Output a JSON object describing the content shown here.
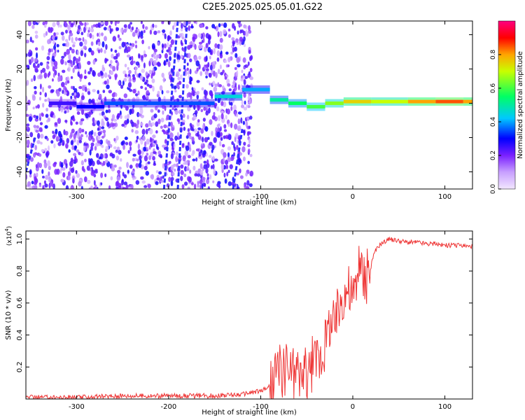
{
  "figure": {
    "title": "C2E5.2025.025.05.01.G22"
  },
  "chart_data": [
    {
      "type": "heatmap",
      "xlabel": "Height of straight line (km)",
      "ylabel": "Frequency (Hz)",
      "xlim": [
        -355,
        130
      ],
      "ylim": [
        -50,
        48
      ],
      "xticks": [
        -300,
        -200,
        -100,
        0,
        100
      ],
      "yticks": [
        -40,
        -20,
        0,
        20,
        40
      ],
      "colorbar": {
        "label": "Normalized spectral amplitude",
        "range": [
          0.0,
          1.0
        ],
        "ticks": [
          0.0,
          0.2,
          0.4,
          0.6,
          0.8
        ],
        "colors": [
          "#e8c8ff",
          "#8a2be2",
          "#0000ff",
          "#00c8ff",
          "#00ff64",
          "#c8ff00",
          "#ffa500",
          "#ff0000",
          "#ff0080"
        ]
      },
      "bands": [
        {
          "x": -330,
          "freq": 0,
          "amplitude": 0.25
        },
        {
          "x": -300,
          "freq": -2,
          "amplitude": 0.3
        },
        {
          "x": -270,
          "freq": 0,
          "amplitude": 0.35
        },
        {
          "x": -150,
          "freq": 4,
          "amplitude": 0.45
        },
        {
          "x": -120,
          "freq": 8,
          "amplitude": 0.4
        },
        {
          "x": -90,
          "freq": 2,
          "amplitude": 0.5
        },
        {
          "x": -70,
          "freq": 0,
          "amplitude": 0.55
        },
        {
          "x": -50,
          "freq": -2,
          "amplitude": 0.6
        },
        {
          "x": -30,
          "freq": 0,
          "amplitude": 0.65
        },
        {
          "x": -10,
          "freq": 1,
          "amplitude": 0.75
        },
        {
          "x": 20,
          "freq": 1,
          "amplitude": 0.7
        },
        {
          "x": 60,
          "freq": 1,
          "amplitude": 0.8
        },
        {
          "x": 90,
          "freq": 1,
          "amplitude": 0.85
        },
        {
          "x": 120,
          "freq": 1,
          "amplitude": 0.8
        }
      ]
    },
    {
      "type": "line",
      "xlabel": "Height of straight line (km)",
      "ylabel": "SNR (10 * v/v)",
      "multiplier_label": "(x10",
      "multiplier_exp": "4",
      "xlim": [
        -355,
        130
      ],
      "ylim": [
        0.0,
        1.05
      ],
      "xticks": [
        -300,
        -200,
        -100,
        0,
        100
      ],
      "yticks": [
        0.2,
        0.4,
        0.6,
        0.8,
        1.0
      ],
      "series": [
        {
          "color": "#ee3333",
          "x": [
            -355,
            -300,
            -250,
            -200,
            -150,
            -120,
            -100,
            -90,
            -80,
            -70,
            -60,
            -50,
            -40,
            -30,
            -25,
            -20,
            -15,
            -10,
            -5,
            0,
            5,
            10,
            15,
            20,
            25,
            30,
            40,
            50,
            60,
            70,
            80,
            90,
            100,
            110,
            120,
            130
          ],
          "y": [
            0.01,
            0.01,
            0.02,
            0.02,
            0.02,
            0.03,
            0.05,
            0.08,
            0.18,
            0.2,
            0.15,
            0.16,
            0.25,
            0.32,
            0.5,
            0.45,
            0.58,
            0.68,
            0.7,
            0.62,
            0.78,
            0.8,
            0.75,
            0.85,
            0.93,
            0.97,
            1.0,
            0.99,
            0.98,
            0.98,
            0.97,
            0.97,
            0.96,
            0.96,
            0.96,
            0.95
          ]
        }
      ]
    }
  ]
}
